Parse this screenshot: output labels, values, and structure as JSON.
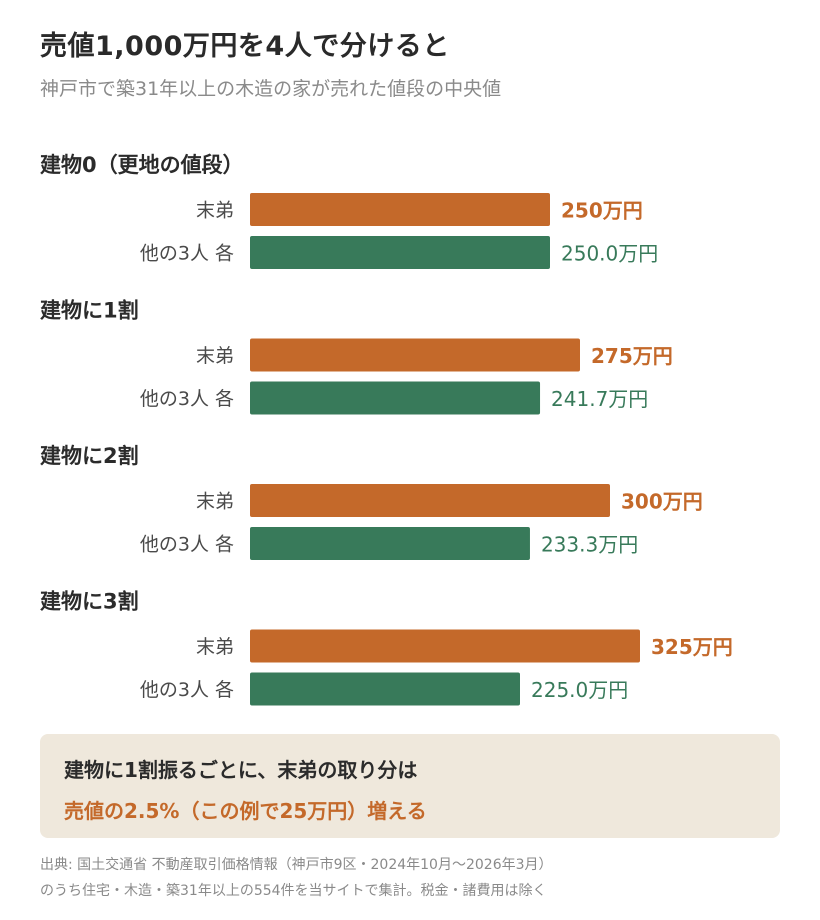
{
  "title": "売値1,000万円を4人で分けると",
  "subtitle": "神戸市で築31年以上の木造の家が売れた値段の中央値",
  "colors": {
    "youngest": "#c4692a",
    "others": "#387a5a"
  },
  "chart_data": {
    "type": "bar",
    "orientation": "horizontal",
    "unit": "万円",
    "groups": [
      {
        "label": "建物0（更地の値段）",
        "bars": [
          {
            "label": "末弟",
            "value": 250,
            "value_label": "250万円",
            "series": "youngest"
          },
          {
            "label": "他の3人 各",
            "value": 250.0,
            "value_label": "250.0万円",
            "series": "others"
          }
        ]
      },
      {
        "label": "建物に1割",
        "bars": [
          {
            "label": "末弟",
            "value": 275,
            "value_label": "275万円",
            "series": "youngest"
          },
          {
            "label": "他の3人 各",
            "value": 241.7,
            "value_label": "241.7万円",
            "series": "others"
          }
        ]
      },
      {
        "label": "建物に2割",
        "bars": [
          {
            "label": "末弟",
            "value": 300,
            "value_label": "300万円",
            "series": "youngest"
          },
          {
            "label": "他の3人 各",
            "value": 233.3,
            "value_label": "233.3万円",
            "series": "others"
          }
        ]
      },
      {
        "label": "建物に3割",
        "bars": [
          {
            "label": "末弟",
            "value": 325,
            "value_label": "325万円",
            "series": "youngest"
          },
          {
            "label": "他の3人 各",
            "value": 225.0,
            "value_label": "225.0万円",
            "series": "others"
          }
        ]
      }
    ],
    "xlim": [
      0,
      500
    ],
    "grid": false
  },
  "note": {
    "line1": "建物に1割振るごとに、末弟の取り分は",
    "line2": "売値の2.5%（この例で25万円）増える"
  },
  "source": {
    "line1": "出典: 国土交通省 不動産取引価格情報（神戸市9区・2024年10月〜2026年3月）",
    "line2": "のうち住宅・木造・築31年以上の554件を当サイトで集計。税金・諸費用は除く"
  }
}
